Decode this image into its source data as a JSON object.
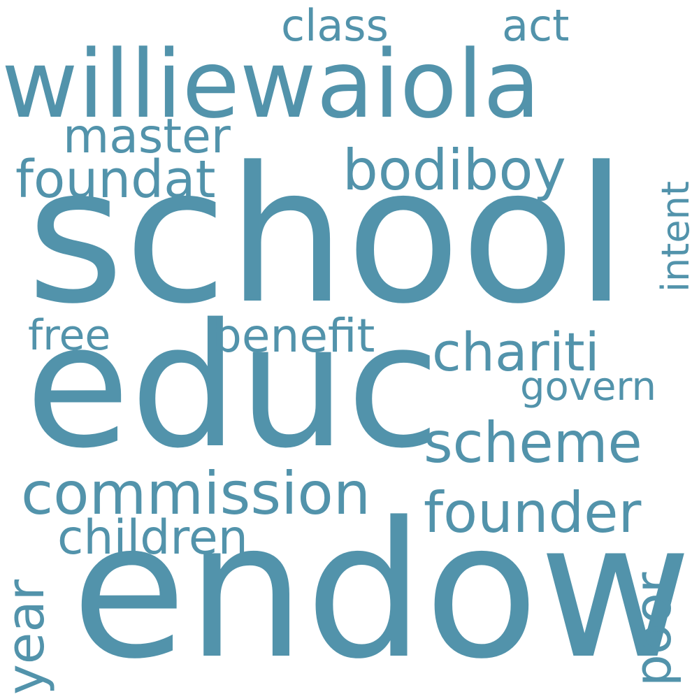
{
  "color": "#5293ab",
  "background": "#ffffff",
  "words": {
    "school": "school",
    "educ": "educ",
    "endow": "endow",
    "williewaiola": "williewaiola",
    "commission": "commission",
    "chariti": "chariti",
    "scheme": "scheme",
    "founder": "founder",
    "bodiboy": "bodiboy",
    "foundat": "foundat",
    "master": "master",
    "benefit": "benefit",
    "children": "children",
    "class": "class",
    "act": "act",
    "free": "free",
    "govern": "govern",
    "intent": "intent",
    "year": "year",
    "poor": "poor"
  }
}
